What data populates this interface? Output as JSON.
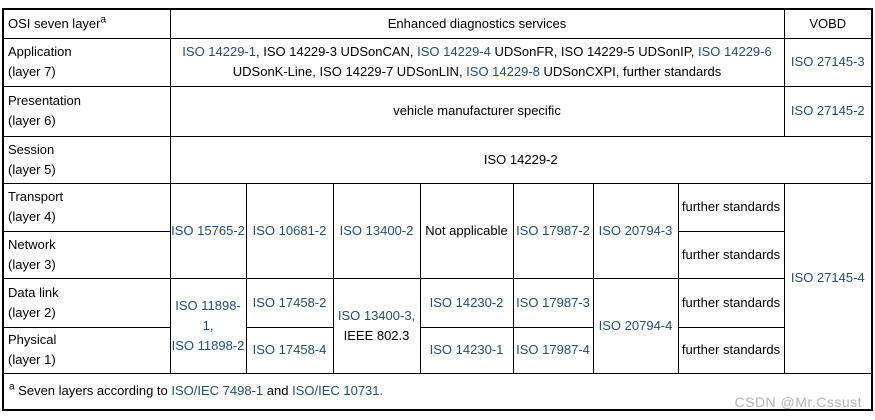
{
  "colors": {
    "link_blue": "#1b4e7d",
    "border": "#000000",
    "watermark_gray": "#b5b5b5"
  },
  "table": {
    "header": {
      "osi": "OSI seven layer",
      "osi_sup": "a",
      "services": "Enhanced diagnostics services",
      "vobd": "VOBD"
    },
    "layers": {
      "application": {
        "name": "Application",
        "sub": "(layer 7)"
      },
      "presentation": {
        "name": "Presentation",
        "sub": "(layer 6)"
      },
      "session": {
        "name": "Session",
        "sub": "(layer 5)"
      },
      "transport": {
        "name": "Transport",
        "sub": "(layer 4)"
      },
      "network": {
        "name": "Network",
        "sub": "(layer 3)"
      },
      "datalink": {
        "name": "Data link",
        "sub": "(layer 2)"
      },
      "physical": {
        "name": "Physical",
        "sub": "(layer 1)"
      }
    },
    "cells": {
      "application_services": [
        {
          "t": "ISO 14229-1",
          "link": true
        },
        {
          "t": ", ISO 14229-3 UDSonCAN, ",
          "link": false
        },
        {
          "t": "ISO 14229-4",
          "link": true
        },
        {
          "t": " UDSonFR, ISO 14229-5 UDSonIP, ",
          "link": false
        },
        {
          "t": "ISO 14229-6",
          "link": true
        },
        {
          "t": " UDSonK-Line, ISO 14229-7 UDSonLIN, ",
          "link": false
        },
        {
          "t": "ISO 14229-8",
          "link": true
        },
        {
          "t": " UDSonCXPI, further standards",
          "link": false
        }
      ],
      "application_vobd": "ISO 27145-3",
      "presentation_services": "vehicle manufacturer specific",
      "presentation_vobd": "ISO 27145-2",
      "session_span": "ISO 14229-2",
      "transport_c1": "ISO 15765-2",
      "transport_c2": "ISO 10681-2",
      "transport_c3": "ISO 13400-2",
      "transport_c4": "Not applicable",
      "transport_c5": "ISO 17987-2",
      "transport_c6": "ISO 20794-3",
      "transport_further": "further standards",
      "network_further": "further standards",
      "vobd_lower": "ISO 27145-4",
      "datalink_c1": [
        {
          "t": "ISO 11898-1,",
          "link": true
        },
        {
          "br": true
        },
        {
          "t": "ISO 11898-2",
          "link": true
        }
      ],
      "datalink_c2": "ISO 17458-2",
      "datalink_c3": [
        {
          "t": "ISO 13400-3,",
          "link": true
        },
        {
          "br": true
        },
        {
          "t": "IEEE 802.3",
          "link": false
        }
      ],
      "datalink_c4": "ISO 14230-2",
      "datalink_c5": "ISO 17987-3",
      "datalink_c6": "ISO 20794-4",
      "datalink_further": "further standards",
      "physical_c2": "ISO 17458-4",
      "physical_c4": "ISO 14230-1",
      "physical_c5": "ISO 17987-4",
      "physical_further": "further standards"
    },
    "footnote": {
      "sup": "a",
      "segments": [
        {
          "t": " Seven layers according to ",
          "link": false
        },
        {
          "t": "ISO/IEC 7498-1",
          "link": true
        },
        {
          "t": " and ",
          "link": false
        },
        {
          "t": "ISO/IEC 10731.",
          "link": true
        }
      ]
    }
  },
  "watermark": "CSDN @Mr.Cssust"
}
